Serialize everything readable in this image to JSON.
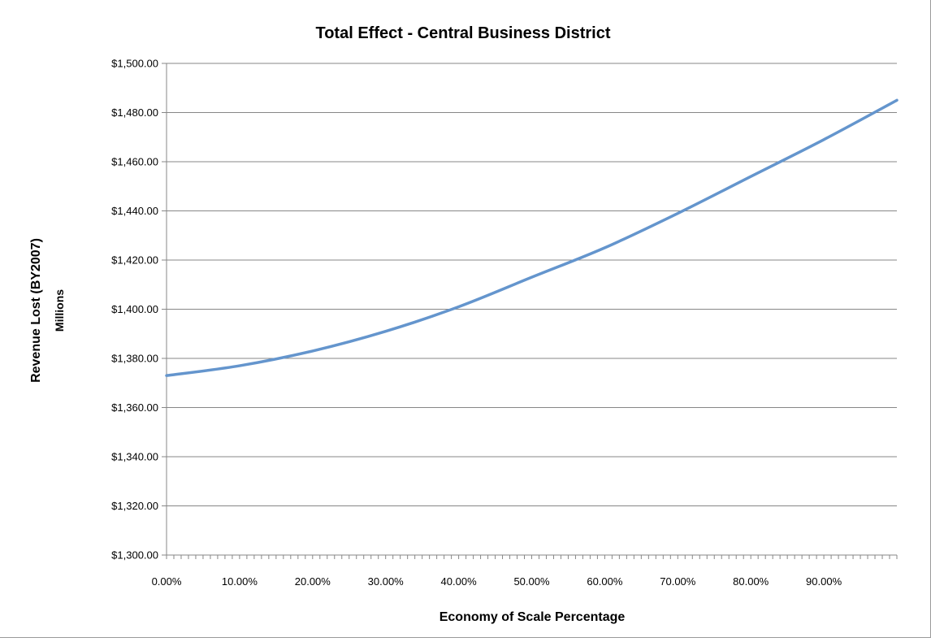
{
  "chart_data": {
    "type": "line",
    "title": "Total Effect - Central Business District",
    "xlabel": "Economy of Scale Percentage",
    "ylabel": "Revenue Lost (BY2007)",
    "ylabel_unit": "Millions",
    "ylim": [
      1300,
      1500
    ],
    "xlim": [
      0,
      100
    ],
    "y_ticks": [
      1300,
      1320,
      1340,
      1360,
      1380,
      1400,
      1420,
      1440,
      1460,
      1480,
      1500
    ],
    "y_tick_labels": [
      "$1,300.00",
      "$1,320.00",
      "$1,340.00",
      "$1,360.00",
      "$1,380.00",
      "$1,400.00",
      "$1,420.00",
      "$1,440.00",
      "$1,460.00",
      "$1,480.00",
      "$1,500.00"
    ],
    "x_ticks": [
      0,
      10,
      20,
      30,
      40,
      50,
      60,
      70,
      80,
      90
    ],
    "x_tick_labels": [
      "0.00%",
      "10.00%",
      "20.00%",
      "30.00%",
      "40.00%",
      "50.00%",
      "60.00%",
      "70.00%",
      "80.00%",
      "90.00%"
    ],
    "grid": true,
    "legend": "none",
    "series": [
      {
        "color": "#6495cd",
        "x": [
          0,
          10,
          20,
          30,
          40,
          50,
          60,
          70,
          80,
          90,
          100
        ],
        "y": [
          1373,
          1377,
          1383,
          1391,
          1401,
          1413,
          1425,
          1439,
          1454,
          1469,
          1485
        ]
      }
    ]
  }
}
